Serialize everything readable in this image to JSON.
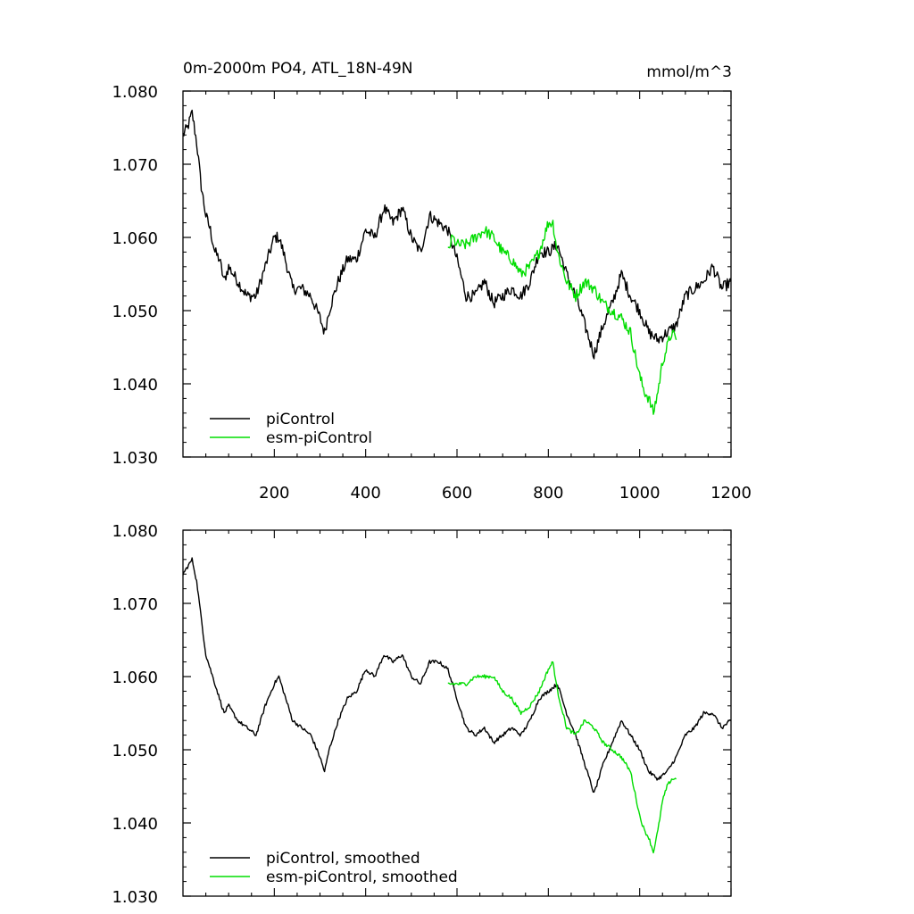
{
  "chart_data": [
    {
      "type": "line",
      "title": "0m-2000m PO4, ATL_18N-49N",
      "units": "mmol/m^3",
      "xlim": [
        0,
        1200
      ],
      "ylim": [
        1.03,
        1.08
      ],
      "x_ticks": [
        200,
        400,
        600,
        800,
        1000,
        1200
      ],
      "x_tick_labels": [
        "200",
        "400",
        "600",
        "800",
        "1000",
        "1200"
      ],
      "y_ticks": [
        1.03,
        1.04,
        1.05,
        1.06,
        1.07,
        1.08
      ],
      "y_tick_labels": [
        "1.030",
        "1.040",
        "1.050",
        "1.060",
        "1.070",
        "1.080"
      ],
      "legend": [
        "piControl",
        "esm-piControl"
      ],
      "series": [
        {
          "name": "piControl",
          "color": "#000000",
          "x": [
            0,
            10,
            20,
            30,
            40,
            50,
            60,
            70,
            80,
            90,
            100,
            120,
            140,
            160,
            180,
            200,
            210,
            220,
            240,
            260,
            280,
            300,
            310,
            320,
            340,
            360,
            380,
            400,
            420,
            440,
            460,
            480,
            500,
            520,
            540,
            560,
            580,
            600,
            620,
            640,
            660,
            680,
            700,
            720,
            740,
            760,
            780,
            800,
            820,
            840,
            860,
            880,
            900,
            920,
            940,
            960,
            980,
            1000,
            1020,
            1040,
            1060,
            1080,
            1100,
            1120,
            1140,
            1160,
            1180,
            1200
          ],
          "y": [
            1.074,
            1.075,
            1.077,
            1.073,
            1.067,
            1.063,
            1.061,
            1.058,
            1.057,
            1.054,
            1.056,
            1.054,
            1.052,
            1.052,
            1.056,
            1.06,
            1.06,
            1.058,
            1.053,
            1.053,
            1.052,
            1.049,
            1.047,
            1.05,
            1.054,
            1.057,
            1.057,
            1.061,
            1.06,
            1.064,
            1.062,
            1.064,
            1.06,
            1.058,
            1.063,
            1.062,
            1.061,
            1.057,
            1.052,
            1.052,
            1.054,
            1.051,
            1.052,
            1.053,
            1.052,
            1.054,
            1.058,
            1.058,
            1.059,
            1.055,
            1.052,
            1.048,
            1.044,
            1.048,
            1.051,
            1.055,
            1.052,
            1.05,
            1.047,
            1.046,
            1.047,
            1.048,
            1.052,
            1.053,
            1.054,
            1.056,
            1.053,
            1.054
          ]
        },
        {
          "name": "esm-piControl",
          "color": "#00dd00",
          "x": [
            580,
            590,
            600,
            620,
            640,
            660,
            680,
            700,
            720,
            740,
            760,
            780,
            800,
            810,
            820,
            840,
            860,
            880,
            900,
            920,
            940,
            960,
            980,
            1000,
            1010,
            1020,
            1030,
            1040,
            1050,
            1060,
            1070,
            1080
          ],
          "y": [
            1.058,
            1.06,
            1.059,
            1.059,
            1.06,
            1.061,
            1.06,
            1.058,
            1.057,
            1.055,
            1.056,
            1.058,
            1.062,
            1.062,
            1.058,
            1.054,
            1.052,
            1.054,
            1.053,
            1.051,
            1.05,
            1.049,
            1.047,
            1.041,
            1.039,
            1.038,
            1.036,
            1.039,
            1.043,
            1.045,
            1.047,
            1.046
          ]
        }
      ]
    },
    {
      "type": "line",
      "xlim": [
        0,
        1200
      ],
      "ylim": [
        1.03,
        1.08
      ],
      "y_ticks": [
        1.03,
        1.04,
        1.05,
        1.06,
        1.07,
        1.08
      ],
      "y_tick_labels": [
        "1.030",
        "1.040",
        "1.050",
        "1.060",
        "1.070",
        "1.080"
      ],
      "legend": [
        "piControl, smoothed",
        "esm-piControl, smoothed"
      ],
      "series": [
        {
          "name": "piControl, smoothed",
          "color": "#000000",
          "x": [
            0,
            10,
            20,
            30,
            40,
            50,
            60,
            70,
            80,
            90,
            100,
            120,
            140,
            160,
            180,
            200,
            210,
            220,
            240,
            260,
            280,
            300,
            310,
            320,
            340,
            360,
            380,
            400,
            420,
            440,
            460,
            480,
            500,
            520,
            540,
            560,
            580,
            600,
            620,
            640,
            660,
            680,
            700,
            720,
            740,
            760,
            780,
            800,
            820,
            840,
            860,
            880,
            900,
            920,
            940,
            960,
            980,
            1000,
            1020,
            1040,
            1060,
            1080,
            1100,
            1120,
            1140,
            1160,
            1180,
            1200
          ],
          "y": [
            1.074,
            1.075,
            1.076,
            1.073,
            1.068,
            1.063,
            1.061,
            1.059,
            1.057,
            1.055,
            1.056,
            1.054,
            1.053,
            1.052,
            1.056,
            1.059,
            1.06,
            1.058,
            1.054,
            1.053,
            1.052,
            1.049,
            1.047,
            1.05,
            1.054,
            1.057,
            1.058,
            1.061,
            1.06,
            1.063,
            1.062,
            1.063,
            1.06,
            1.059,
            1.062,
            1.062,
            1.061,
            1.057,
            1.053,
            1.052,
            1.053,
            1.051,
            1.052,
            1.053,
            1.052,
            1.054,
            1.057,
            1.058,
            1.059,
            1.055,
            1.052,
            1.048,
            1.044,
            1.048,
            1.051,
            1.054,
            1.052,
            1.05,
            1.047,
            1.046,
            1.047,
            1.049,
            1.052,
            1.053,
            1.055,
            1.055,
            1.053,
            1.054
          ]
        },
        {
          "name": "esm-piControl, smoothed",
          "color": "#00dd00",
          "x": [
            580,
            590,
            600,
            620,
            640,
            660,
            680,
            700,
            720,
            740,
            760,
            780,
            800,
            810,
            820,
            840,
            860,
            880,
            900,
            920,
            940,
            960,
            980,
            1000,
            1010,
            1020,
            1030,
            1040,
            1050,
            1060,
            1070,
            1080
          ],
          "y": [
            1.059,
            1.059,
            1.059,
            1.059,
            1.06,
            1.06,
            1.06,
            1.058,
            1.057,
            1.055,
            1.056,
            1.058,
            1.061,
            1.062,
            1.058,
            1.053,
            1.052,
            1.054,
            1.053,
            1.051,
            1.05,
            1.049,
            1.047,
            1.041,
            1.039,
            1.038,
            1.036,
            1.039,
            1.043,
            1.045,
            1.046,
            1.046
          ]
        }
      ]
    }
  ]
}
